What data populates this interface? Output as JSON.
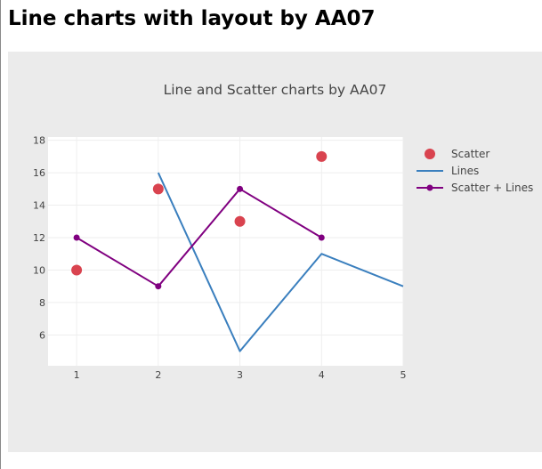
{
  "page": {
    "heading": "Line charts with layout by AA07"
  },
  "chart_data": {
    "type": "line",
    "title": "Line and Scatter charts by AA07",
    "xlabel": "",
    "ylabel": "",
    "xlim": [
      0.65,
      5
    ],
    "ylim": [
      4.1,
      18.2
    ],
    "x_ticks": [
      1,
      2,
      3,
      4,
      5
    ],
    "y_ticks": [
      6,
      8,
      10,
      12,
      14,
      16,
      18
    ],
    "grid": true,
    "legend_position": "right",
    "series": [
      {
        "name": "Scatter",
        "mode": "markers",
        "color": "#d9434f",
        "x": [
          1,
          2,
          3,
          4
        ],
        "y": [
          10,
          15,
          13,
          17
        ]
      },
      {
        "name": "Lines",
        "mode": "lines",
        "color": "#3a7fbe",
        "x": [
          2,
          3,
          4,
          5
        ],
        "y": [
          16,
          5,
          11,
          9
        ]
      },
      {
        "name": "Scatter + Lines",
        "mode": "lines+markers",
        "color": "#800080",
        "x": [
          1,
          2,
          3,
          4
        ],
        "y": [
          12,
          9,
          15,
          12
        ]
      }
    ]
  }
}
